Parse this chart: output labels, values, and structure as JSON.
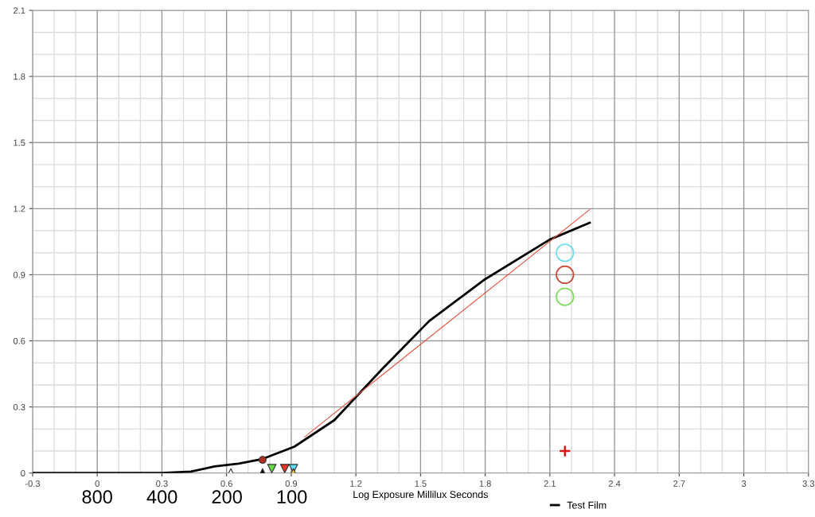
{
  "chart_data": {
    "type": "line",
    "xlabel": "Log Exposure Millilux Seconds",
    "xlim": [
      -0.3,
      3.3
    ],
    "xticks": [
      -0.3,
      0,
      0.3,
      0.6,
      0.9,
      1.2,
      1.5,
      1.8,
      2.1,
      2.4,
      2.7,
      3,
      3.3
    ],
    "ylim": [
      0,
      2.1
    ],
    "yticks": [
      0,
      0.3,
      0.6,
      0.9,
      1.2,
      1.5,
      1.8,
      2.1
    ],
    "x2lim": [
      1596,
      0.4
    ],
    "x2ticks": [
      800,
      400,
      200,
      100
    ],
    "log": "x2",
    "grid": true,
    "legend": "bottom right",
    "series": [
      {
        "name": "Test Film",
        "color": "#000000",
        "marker": "none",
        "x": [
          -0.3,
          0.3,
          0.435,
          0.545,
          0.656,
          0.767,
          0.915,
          1.1,
          1.32,
          1.54,
          1.8,
          2.1,
          2.285
        ],
        "values": [
          0,
          0,
          0.007,
          0.03,
          0.043,
          0.064,
          0.12,
          0.24,
          0.47,
          0.69,
          0.88,
          1.06,
          1.136
        ]
      },
      {
        "color": "#e0503c",
        "marker": "none",
        "x": [
          0.962,
          2.285
        ],
        "values": [
          0.164,
          1.196
        ]
      },
      {
        "type": "scatter",
        "color": "#ffffff",
        "marker": "triangle",
        "x": [
          0.62
        ],
        "values": [
          0
        ]
      },
      {
        "type": "scatter",
        "color": "#000000",
        "marker": "triangle",
        "x": [
          0.767
        ],
        "values": [
          0
        ]
      },
      {
        "type": "scatter",
        "color": "#b03020",
        "marker": "circle",
        "x": [
          0.767
        ],
        "values": [
          0.06
        ]
      },
      {
        "type": "scatter",
        "color": "#66dd44",
        "marker": "triangle_down",
        "x": [
          0.81
        ],
        "values": [
          0.02
        ]
      },
      {
        "type": "scatter",
        "color": "#ee3322",
        "marker": "triangle_down",
        "x": [
          0.87
        ],
        "values": [
          0.02
        ]
      },
      {
        "type": "scatter",
        "color": "#55ddee",
        "marker": "triangle_down",
        "x": [
          0.91
        ],
        "values": [
          0.02
        ]
      },
      {
        "type": "scatter",
        "color": "#f5d040",
        "marker": "triangle",
        "x": [
          0.91
        ],
        "values": [
          0
        ]
      },
      {
        "type": "scatter",
        "color": "#66ddee",
        "marker": "circle_open",
        "x": [
          2.17
        ],
        "values": [
          1.0
        ]
      },
      {
        "type": "scatter",
        "color": "#cc4433",
        "marker": "circle_open",
        "x": [
          2.17
        ],
        "values": [
          0.9
        ]
      },
      {
        "type": "scatter",
        "color": "#77dd55",
        "marker": "circle_open",
        "x": [
          2.17
        ],
        "values": [
          0.8
        ]
      },
      {
        "type": "scatter",
        "color": "#dd1111",
        "marker": "cross",
        "x": [
          2.17
        ],
        "values": [
          0.1
        ]
      }
    ]
  }
}
